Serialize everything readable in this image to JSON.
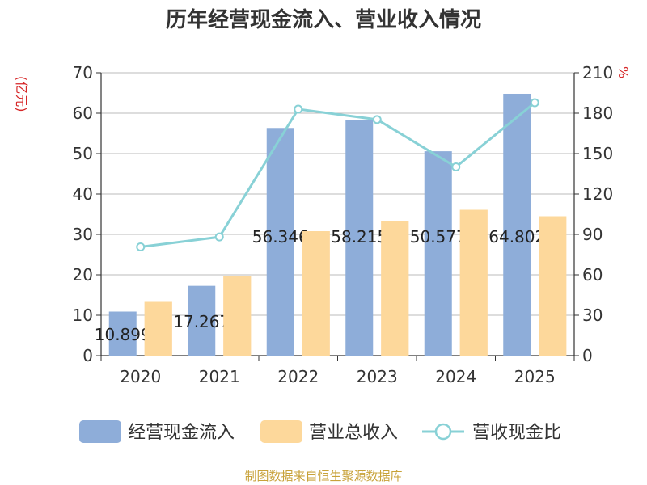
{
  "title": "历年经营现金流入、营业收入情况",
  "y_left_unit": "(亿元)",
  "y_right_unit": "%",
  "source": "制图数据来自恒生聚源数据库",
  "colors": {
    "bar1": "#8eadd9",
    "bar2": "#fdd89b",
    "line": "#88d1d6",
    "grid": "#bbbbbb",
    "axis": "#333333",
    "unit": "#d62728",
    "source": "#c8a23a"
  },
  "chart_data": {
    "type": "bar",
    "categories": [
      "2020",
      "2021",
      "2022",
      "2023",
      "2024",
      "2025"
    ],
    "series": [
      {
        "name": "经营现金流入",
        "type": "bar",
        "axis": "left",
        "values": [
          10.899,
          17.267,
          56.346,
          58.215,
          50.577,
          64.802
        ]
      },
      {
        "name": "营业总收入",
        "type": "bar",
        "axis": "left",
        "values": [
          13.5,
          19.6,
          30.8,
          33.2,
          36.1,
          34.5
        ]
      },
      {
        "name": "营收现金比",
        "type": "line",
        "axis": "right",
        "values": [
          80.7,
          88.1,
          183.0,
          175.3,
          140.1,
          187.8
        ]
      }
    ],
    "data_labels": [
      "10.899",
      "17.267",
      "56.346",
      "58.215",
      "50.577",
      "64.802"
    ],
    "y_left": {
      "min": 0,
      "max": 70,
      "ticks": [
        0,
        10,
        20,
        30,
        40,
        50,
        60,
        70
      ]
    },
    "y_right": {
      "min": 0,
      "max": 210,
      "ticks": [
        0,
        30,
        60,
        90,
        120,
        150,
        180,
        210
      ]
    },
    "grid": true,
    "legend_position": "bottom"
  }
}
